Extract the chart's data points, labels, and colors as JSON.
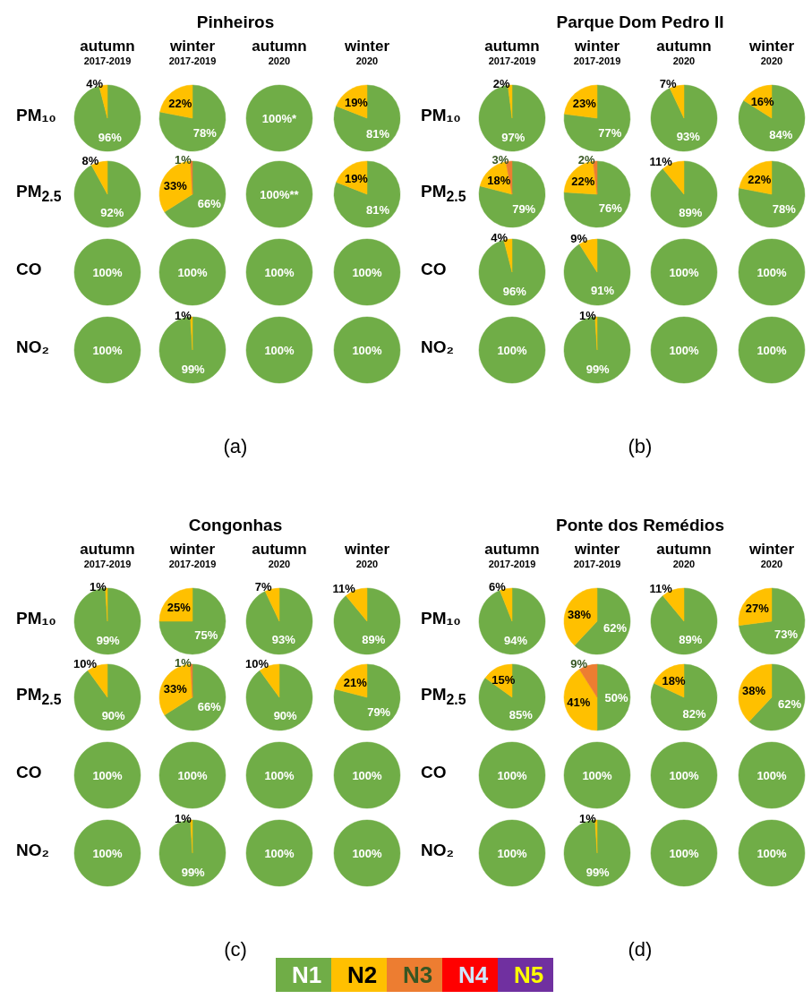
{
  "chart_data": [
    {
      "type": "pie",
      "title": "Pinheiros",
      "ylabel": "PM₁₀",
      "categories": [
        null,
        null
      ],
      "colors": [
        "#70ad47",
        "#ffc000"
      ],
      "series": [
        {
          "name": "autumn\n2017-2019",
          "values": [
            96,
            4
          ],
          "value_labels": [
            "96%",
            "4%"
          ]
        },
        {
          "name": "winter\n2017-2019",
          "values": [
            78,
            22
          ],
          "value_labels": [
            "78%",
            "22%"
          ]
        },
        {
          "name": "autumn\n2020",
          "values": [
            100,
            null
          ],
          "value_labels": [
            "100%*",
            null
          ]
        },
        {
          "name": "winter\n2020",
          "values": [
            81,
            19
          ],
          "value_labels": [
            "81%",
            "19%"
          ]
        }
      ]
    },
    {
      "type": "pie",
      "ylabel": "PM$_{2.5}$",
      "categories": [
        null,
        null,
        null
      ],
      "colors": [
        "#70ad47",
        "#ffc000",
        "#ed7d31"
      ],
      "series": [
        {
          "values": [
            92,
            8,
            null
          ],
          "value_labels": [
            "92%",
            "8%",
            null
          ]
        },
        {
          "values": [
            66,
            33,
            1
          ],
          "value_labels": [
            "66%",
            "33%",
            "1%"
          ]
        },
        {
          "values": [
            100,
            null,
            null
          ],
          "value_labels": [
            "100%**",
            null,
            null
          ]
        },
        {
          "values": [
            81,
            19,
            null
          ],
          "value_labels": [
            "81%",
            "19%",
            null
          ]
        }
      ]
    },
    {
      "type": "pie",
      "ylabel": "CO",
      "categories": [
        null
      ],
      "colors": [
        "#70ad47"
      ],
      "series": [
        {
          "values": [
            100
          ],
          "value_labels": [
            "100%"
          ]
        },
        {
          "values": [
            100
          ],
          "value_labels": [
            "100%"
          ]
        },
        {
          "values": [
            100
          ],
          "value_labels": [
            "100%"
          ]
        },
        {
          "values": [
            100
          ],
          "value_labels": [
            "100%"
          ]
        }
      ]
    },
    {
      "type": "pie",
      "ylabel": "NO₂",
      "xlabel": "(a)",
      "categories": [
        null,
        null
      ],
      "colors": [
        "#70ad47",
        "#ffc000"
      ],
      "series": [
        {
          "values": [
            100,
            null
          ],
          "value_labels": [
            "100%",
            null
          ]
        },
        {
          "values": [
            99,
            1
          ],
          "value_labels": [
            "99%",
            "1%"
          ]
        },
        {
          "values": [
            100,
            null
          ],
          "value_labels": [
            "100%",
            null
          ]
        },
        {
          "values": [
            100,
            null
          ],
          "value_labels": [
            "100%",
            null
          ]
        }
      ]
    },
    {
      "type": "pie",
      "title": "Parque Dom Pedro II",
      "ylabel": "PM₁₀",
      "categories": [
        null,
        null
      ],
      "colors": [
        "#70ad47",
        "#ffc000"
      ],
      "series": [
        {
          "name": "autumn\n2017-2019",
          "values": [
            97,
            2
          ],
          "value_labels": [
            "97%",
            "2%"
          ]
        },
        {
          "name": "winter\n2017-2019",
          "values": [
            77,
            23
          ],
          "value_labels": [
            "77%",
            "23%"
          ]
        },
        {
          "name": "autumn\n2020",
          "values": [
            93,
            7
          ],
          "value_labels": [
            "93%",
            "7%"
          ]
        },
        {
          "name": "winter\n2020",
          "values": [
            84,
            16
          ],
          "value_labels": [
            "84%",
            "16%"
          ]
        }
      ]
    },
    {
      "type": "pie",
      "ylabel": "PM$_{2.5}$",
      "categories": [
        null,
        null,
        null
      ],
      "colors": [
        "#70ad47",
        "#ffc000",
        "#ed7d31"
      ],
      "series": [
        {
          "values": [
            79,
            18,
            3
          ],
          "value_labels": [
            "79%",
            "18%",
            "3%"
          ]
        },
        {
          "values": [
            76,
            22,
            2
          ],
          "value_labels": [
            "76%",
            "22%",
            "2%"
          ]
        },
        {
          "values": [
            89,
            11,
            null
          ],
          "value_labels": [
            "89%",
            "11%",
            null
          ]
        },
        {
          "values": [
            78,
            22,
            null
          ],
          "value_labels": [
            "78%",
            "22%",
            null
          ]
        }
      ]
    },
    {
      "type": "pie",
      "ylabel": "CO",
      "categories": [
        null,
        null
      ],
      "colors": [
        "#70ad47",
        "#ffc000"
      ],
      "series": [
        {
          "values": [
            96,
            4
          ],
          "value_labels": [
            "96%",
            "4%"
          ]
        },
        {
          "values": [
            91,
            9
          ],
          "value_labels": [
            "91%",
            "9%"
          ]
        },
        {
          "values": [
            100,
            null
          ],
          "value_labels": [
            "100%",
            null
          ]
        },
        {
          "values": [
            100,
            null
          ],
          "value_labels": [
            "100%",
            null
          ]
        }
      ]
    },
    {
      "type": "pie",
      "ylabel": "NO₂",
      "xlabel": "(b)",
      "categories": [
        null,
        null
      ],
      "colors": [
        "#70ad47",
        "#ffc000"
      ],
      "series": [
        {
          "values": [
            100,
            null
          ],
          "value_labels": [
            "100%",
            null
          ]
        },
        {
          "values": [
            99,
            1
          ],
          "value_labels": [
            "99%",
            "1%"
          ]
        },
        {
          "values": [
            100,
            null
          ],
          "value_labels": [
            "100%",
            null
          ]
        },
        {
          "values": [
            100,
            null
          ],
          "value_labels": [
            "100%",
            null
          ]
        }
      ]
    },
    {
      "type": "pie",
      "title": "Congonhas",
      "ylabel": "PM₁₀",
      "categories": [
        null,
        null
      ],
      "colors": [
        "#70ad47",
        "#ffc000"
      ],
      "series": [
        {
          "name": "autumn\n2017-2019",
          "values": [
            99,
            1
          ],
          "value_labels": [
            "99%",
            "1%"
          ]
        },
        {
          "name": "winter\n2017-2019",
          "values": [
            75,
            25
          ],
          "value_labels": [
            "75%",
            "25%"
          ]
        },
        {
          "name": "autumn\n2020",
          "values": [
            93,
            7
          ],
          "value_labels": [
            "93%",
            "7%"
          ]
        },
        {
          "name": "winter\n2020",
          "values": [
            89,
            11
          ],
          "value_labels": [
            "89%",
            "11%"
          ]
        }
      ]
    },
    {
      "type": "pie",
      "ylabel": "PM$_{2.5}$",
      "categories": [
        null,
        null,
        null
      ],
      "colors": [
        "#70ad47",
        "#ffc000",
        "#ed7d31"
      ],
      "series": [
        {
          "values": [
            90,
            10,
            null
          ],
          "value_labels": [
            "90%",
            "10%",
            null
          ]
        },
        {
          "values": [
            66,
            33,
            1
          ],
          "value_labels": [
            "66%",
            "33%",
            "1%"
          ]
        },
        {
          "values": [
            90,
            10,
            null
          ],
          "value_labels": [
            "90%",
            "10%",
            null
          ]
        },
        {
          "values": [
            79,
            21,
            null
          ],
          "value_labels": [
            "79%",
            "21%",
            null
          ]
        }
      ]
    },
    {
      "type": "pie",
      "ylabel": "CO",
      "categories": [
        null
      ],
      "colors": [
        "#70ad47"
      ],
      "series": [
        {
          "values": [
            100
          ],
          "value_labels": [
            "100%"
          ]
        },
        {
          "values": [
            100
          ],
          "value_labels": [
            "100%"
          ]
        },
        {
          "values": [
            100
          ],
          "value_labels": [
            "100%"
          ]
        },
        {
          "values": [
            100
          ],
          "value_labels": [
            "100%"
          ]
        }
      ]
    },
    {
      "type": "pie",
      "ylabel": "NO₂",
      "xlabel": "(c)",
      "categories": [
        null,
        null
      ],
      "colors": [
        "#70ad47",
        "#ffc000"
      ],
      "series": [
        {
          "values": [
            100,
            null
          ],
          "value_labels": [
            "100%",
            null
          ]
        },
        {
          "values": [
            99,
            1
          ],
          "value_labels": [
            "99%",
            "1%"
          ]
        },
        {
          "values": [
            100,
            null
          ],
          "value_labels": [
            "100%",
            null
          ]
        },
        {
          "values": [
            100,
            null
          ],
          "value_labels": [
            "100%",
            null
          ]
        }
      ]
    },
    {
      "type": "pie",
      "title": "Ponte dos Remédios",
      "ylabel": "PM₁₀",
      "categories": [
        null,
        null
      ],
      "colors": [
        "#70ad47",
        "#ffc000"
      ],
      "series": [
        {
          "name": "autumn\n2017-2019",
          "values": [
            94,
            6
          ],
          "value_labels": [
            "94%",
            "6%"
          ]
        },
        {
          "name": "winter\n2017-2019",
          "values": [
            62,
            38
          ],
          "value_labels": [
            "62%",
            "38%"
          ]
        },
        {
          "name": "autumn\n2020",
          "values": [
            89,
            11
          ],
          "value_labels": [
            "89%",
            "11%"
          ]
        },
        {
          "name": "winter\n2020",
          "values": [
            73,
            27
          ],
          "value_labels": [
            "73%",
            "27%"
          ]
        }
      ]
    },
    {
      "type": "pie",
      "ylabel": "PM$_{2.5}$",
      "categories": [
        null,
        null,
        null
      ],
      "colors": [
        "#70ad47",
        "#ffc000",
        "#ed7d31"
      ],
      "series": [
        {
          "values": [
            85,
            15,
            null
          ],
          "value_labels": [
            "85%",
            "15%",
            null
          ]
        },
        {
          "values": [
            50,
            41,
            9
          ],
          "value_labels": [
            "50%",
            "41%",
            "9%"
          ]
        },
        {
          "values": [
            82,
            18,
            null
          ],
          "value_labels": [
            "82%",
            "18%",
            null
          ]
        },
        {
          "values": [
            62,
            38,
            null
          ],
          "value_labels": [
            "62%",
            "38%",
            null
          ]
        }
      ]
    },
    {
      "type": "pie",
      "ylabel": "CO",
      "categories": [
        null
      ],
      "colors": [
        "#70ad47"
      ],
      "series": [
        {
          "values": [
            100
          ],
          "value_labels": [
            "100%"
          ]
        },
        {
          "values": [
            100
          ],
          "value_labels": [
            "100%"
          ]
        },
        {
          "values": [
            100
          ],
          "value_labels": [
            "100%"
          ]
        },
        {
          "values": [
            100
          ],
          "value_labels": [
            "100%"
          ]
        }
      ]
    },
    {
      "type": "pie",
      "ylabel": "NO₂",
      "xlabel": "(d)",
      "legend": "bottom",
      "categories": [
        "N1",
        "N2",
        "N3",
        "N4",
        "N5"
      ],
      "colors": [
        "#70ad47",
        "#ffc000",
        "#ed7d31",
        "#ff0000",
        "#7030a0"
      ],
      "series": [
        {
          "values": [
            100,
            null,
            null,
            null,
            null
          ],
          "value_labels": [
            "100%",
            null,
            null,
            null,
            null
          ]
        },
        {
          "values": [
            99,
            1,
            null,
            null,
            null
          ],
          "value_labels": [
            "99%",
            "1%",
            null,
            null,
            null
          ]
        },
        {
          "values": [
            100,
            null,
            null,
            null,
            null
          ],
          "value_labels": [
            "100%",
            null,
            null,
            null,
            null
          ]
        },
        {
          "values": [
            100,
            null,
            null,
            null,
            null
          ],
          "value_labels": [
            "100%",
            null,
            null,
            null,
            null
          ]
        }
      ]
    }
  ]
}
